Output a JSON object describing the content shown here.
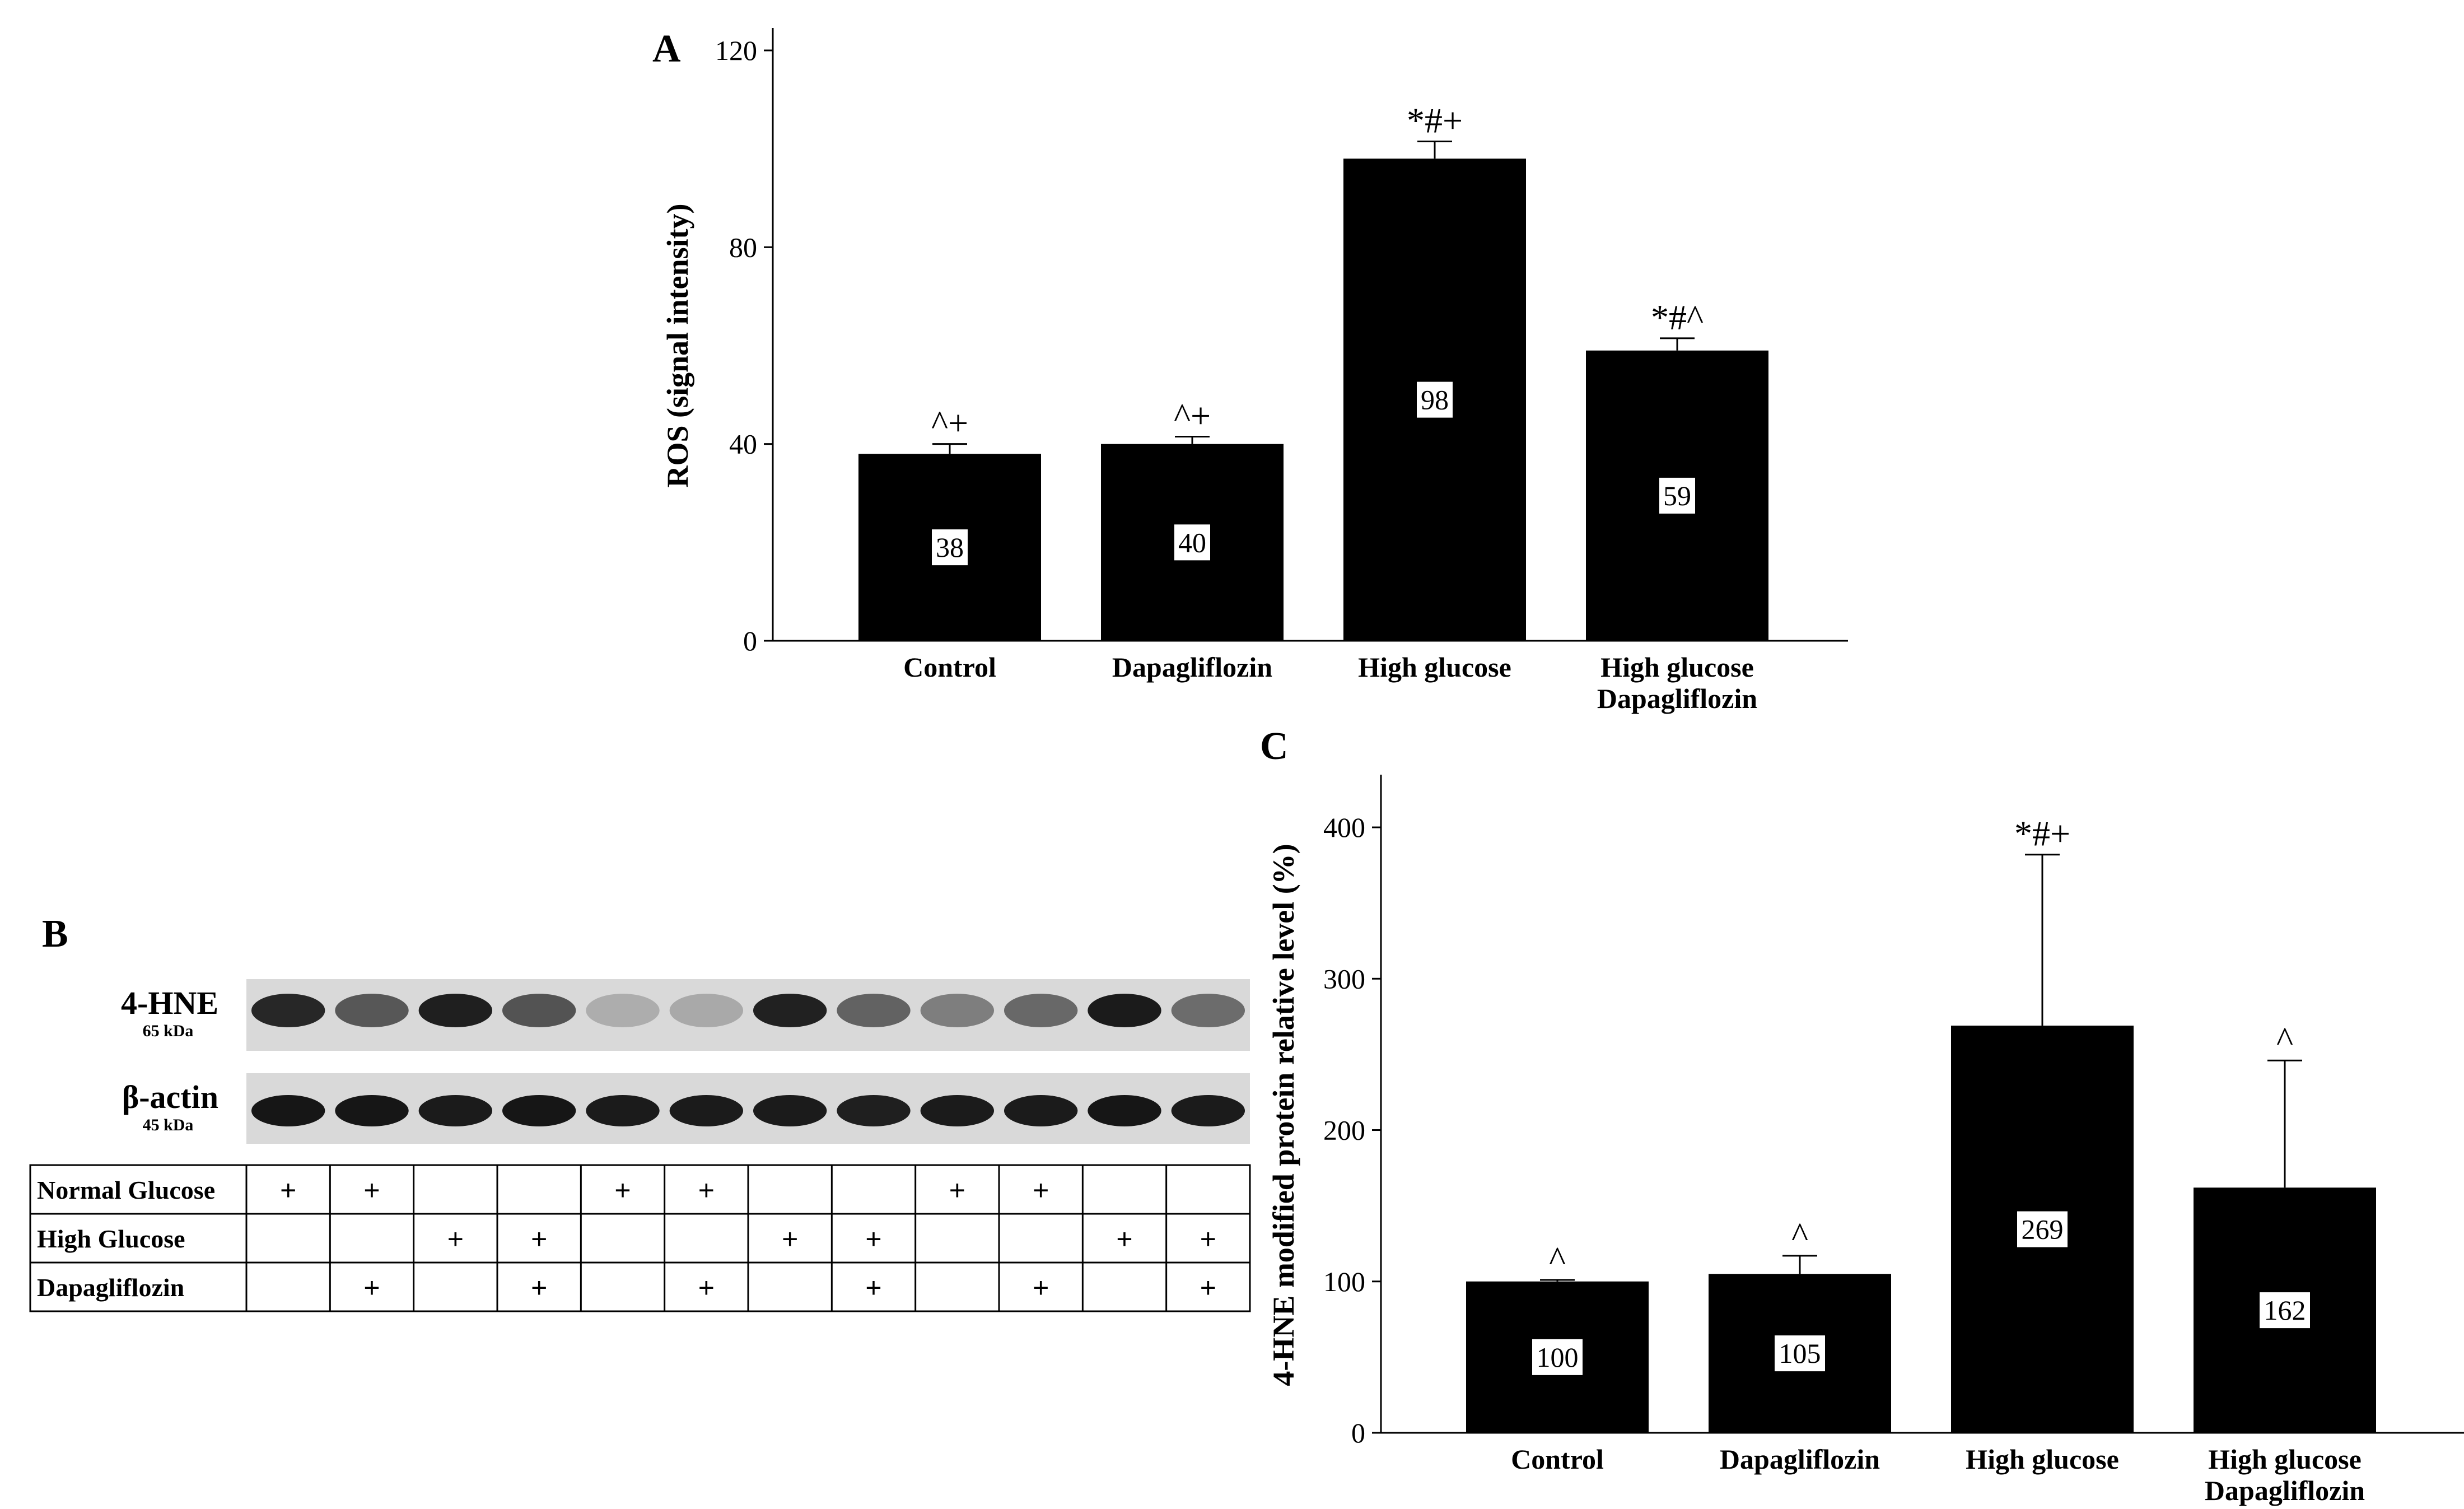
{
  "chart_data": [
    {
      "panel": "A",
      "type": "bar",
      "title": "",
      "xlabel": "",
      "ylabel": "ROS (signal intensity)",
      "ylim": [
        0,
        120
      ],
      "yticks": [
        "0",
        "40",
        "80",
        "120"
      ],
      "categories": [
        [
          "Control"
        ],
        [
          "Dapagliflozin"
        ],
        [
          "High glucose"
        ],
        [
          "High glucose",
          "Dapagliflozin"
        ]
      ],
      "values": [
        38,
        40,
        98,
        59
      ],
      "value_labels": [
        "38",
        "40",
        "98",
        "59"
      ],
      "error_upper": [
        40,
        41.5,
        101.5,
        61.5
      ],
      "significance": [
        "^+",
        "^+",
        "*#+",
        "*#^"
      ],
      "bar_color": "#000000"
    },
    {
      "panel": "C",
      "type": "bar",
      "title": "",
      "xlabel": "",
      "ylabel": "4-HNE modified protein relative level (%)",
      "ylim": [
        0,
        420
      ],
      "yticks": [
        "0",
        "100",
        "200",
        "300",
        "400"
      ],
      "categories": [
        [
          "Control"
        ],
        [
          "Dapagliflozin"
        ],
        [
          "High glucose"
        ],
        [
          "High glucose",
          "Dapagliflozin"
        ]
      ],
      "values": [
        100,
        105,
        269,
        162
      ],
      "value_labels": [
        "100",
        "105",
        "269",
        "162"
      ],
      "error_upper": [
        101,
        117,
        382,
        246
      ],
      "significance": [
        "^",
        "^",
        "*#+",
        "^"
      ],
      "bar_color": "#000000"
    }
  ],
  "blot": {
    "panel": "B",
    "rows": [
      {
        "label": "4-HNE",
        "kda": "65 kDa"
      },
      {
        "label": "β-actin",
        "kda": "45 kDa"
      }
    ],
    "hne_intensities": [
      0.82,
      0.6,
      0.86,
      0.62,
      0.2,
      0.22,
      0.85,
      0.55,
      0.42,
      0.52,
      0.88,
      0.5
    ],
    "actin_intensities": [
      0.9,
      0.9,
      0.88,
      0.9,
      0.88,
      0.88,
      0.88,
      0.86,
      0.88,
      0.88,
      0.9,
      0.88
    ],
    "table": {
      "row_labels": [
        "Normal Glucose",
        "High Glucose",
        "Dapagliflozin"
      ],
      "marks": [
        [
          "+",
          "+",
          "",
          "",
          "+",
          "+",
          "",
          "",
          "+",
          "+",
          "",
          ""
        ],
        [
          "",
          "",
          "+",
          "+",
          "",
          "",
          "+",
          "+",
          "",
          "",
          "+",
          "+"
        ],
        [
          "",
          "+",
          "",
          "+",
          "",
          "+",
          "",
          "+",
          "",
          "+",
          "",
          "+"
        ]
      ]
    }
  }
}
